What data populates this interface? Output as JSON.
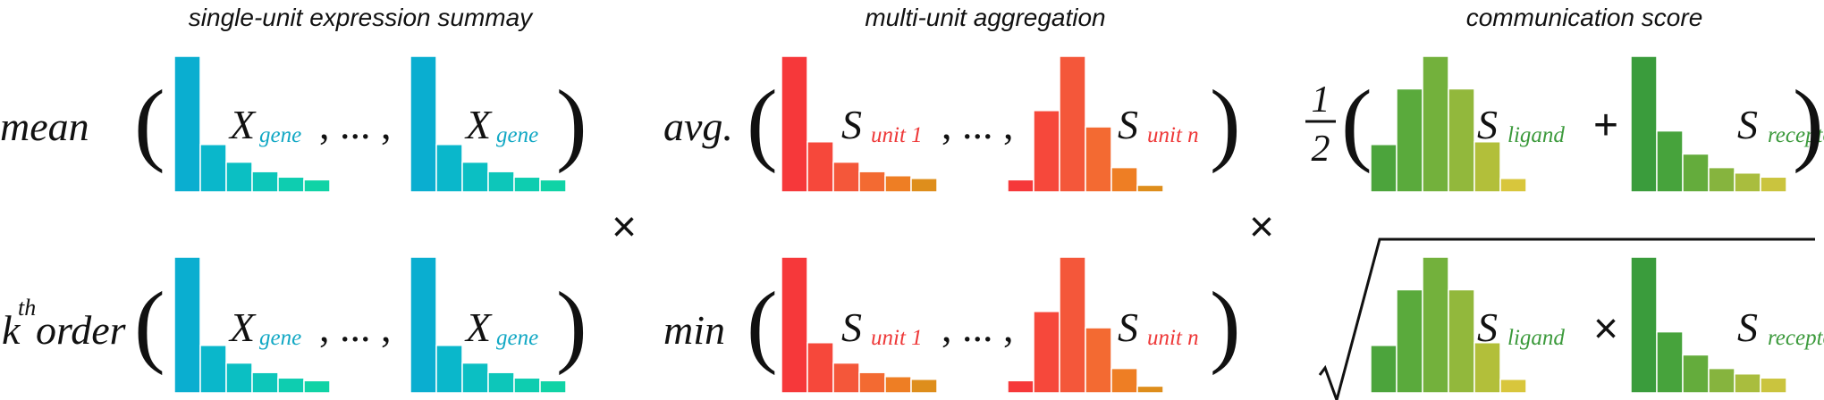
{
  "titles": {
    "summary": "single-unit expression summay",
    "aggregation": "multi-unit aggregation",
    "score": "communication score"
  },
  "summary": {
    "row1_func": "mean",
    "row2_func_k": "k",
    "row2_func_sup": "th",
    "row2_func_rest": "order",
    "var": "X",
    "var_sub": "gene",
    "ellipsis": ", ... ,"
  },
  "aggregation": {
    "row1_func": "avg.",
    "row2_func": "min",
    "var": "S",
    "sub_first": "unit 1",
    "sub_last": "unit n",
    "ellipsis": ", ... ,"
  },
  "score": {
    "frac_num": "1",
    "frac_den": "2",
    "var": "S",
    "sub_ligand": "ligand",
    "sub_receptor": "receptor",
    "plus": "+",
    "times": "×"
  },
  "operators": {
    "times_left": "×",
    "times_right": "×"
  },
  "colors": {
    "summary_bars": [
      "#0aaed0",
      "#0ab7cb",
      "#0bbfc3",
      "#0dc6ba",
      "#0ecdb0",
      "#10d3a6"
    ],
    "summary_sub": "#12a8c4",
    "agg_bars": [
      "#f6383a",
      "#f6483b",
      "#f4573a",
      "#f36a32",
      "#ee7e24",
      "#de8e1c"
    ],
    "agg_sub": "#ee3838",
    "ligand_bars": [
      "#4ca43c",
      "#5aaa3c",
      "#73b13c",
      "#92b83c",
      "#b2bf3a",
      "#d8c63c"
    ],
    "receptor_bars": [
      "#3a9c3c",
      "#47a33c",
      "#64ac3c",
      "#86b43e",
      "#a9bd3e",
      "#cac43e"
    ],
    "score_sub": "#3c9a3c"
  },
  "histograms": {
    "summary": [
      1.0,
      0.35,
      0.22,
      0.15,
      0.11,
      0.09
    ],
    "agg_first": [
      1.0,
      0.37,
      0.22,
      0.15,
      0.12,
      0.1
    ],
    "agg_last": [
      0.09,
      0.6,
      1.0,
      0.48,
      0.18,
      0.05
    ],
    "ligand": [
      0.35,
      0.76,
      1.0,
      0.76,
      0.37,
      0.1
    ],
    "receptor": [
      1.0,
      0.45,
      0.28,
      0.18,
      0.14,
      0.11
    ]
  }
}
